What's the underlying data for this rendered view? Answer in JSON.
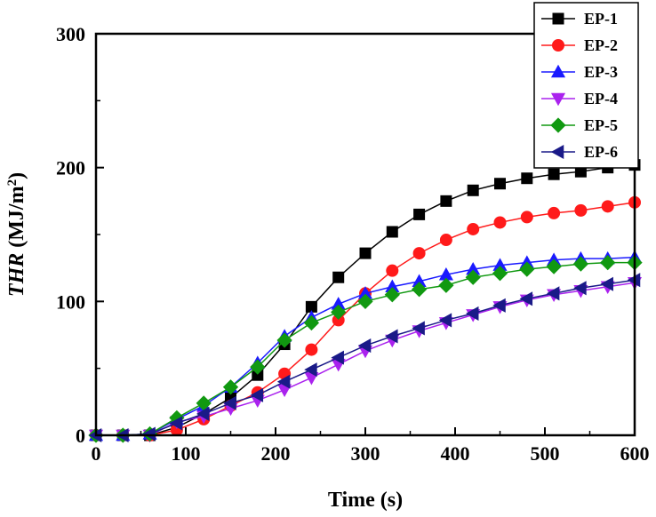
{
  "chart_data": {
    "type": "line",
    "xlabel": "Time (s)",
    "ylabel": {
      "italic": "THR",
      "rest": " (MJ/m",
      "sup": "2",
      "close": ")"
    },
    "xlim": [
      0,
      600
    ],
    "ylim": [
      0,
      300
    ],
    "xticks": [
      0,
      100,
      200,
      300,
      400,
      500,
      600
    ],
    "yticks": [
      0,
      100,
      200,
      300
    ],
    "x": [
      0,
      30,
      60,
      90,
      120,
      150,
      180,
      210,
      240,
      270,
      300,
      330,
      360,
      390,
      420,
      450,
      480,
      510,
      540,
      570,
      600
    ],
    "legend_position": "top-right",
    "series": [
      {
        "name": "EP-1",
        "color": "#000000",
        "marker": "square",
        "values": [
          0,
          0,
          0,
          6,
          16,
          28,
          45,
          68,
          96,
          118,
          136,
          152,
          165,
          175,
          183,
          188,
          192,
          195,
          197,
          200,
          202
        ]
      },
      {
        "name": "EP-2",
        "color": "#ff1a1a",
        "marker": "circle",
        "values": [
          0,
          0,
          0,
          4,
          12,
          22,
          32,
          46,
          64,
          86,
          106,
          123,
          136,
          146,
          154,
          159,
          163,
          166,
          168,
          171,
          174
        ]
      },
      {
        "name": "EP-3",
        "color": "#1a1aff",
        "marker": "triangle-up",
        "values": [
          0,
          0,
          1,
          12,
          22,
          36,
          54,
          74,
          88,
          98,
          106,
          111,
          115,
          120,
          124,
          127,
          129,
          131,
          132,
          132,
          133
        ]
      },
      {
        "name": "EP-4",
        "color": "#aa22ee",
        "marker": "triangle-down",
        "values": [
          0,
          0,
          0,
          10,
          14,
          20,
          26,
          34,
          43,
          53,
          63,
          71,
          78,
          84,
          90,
          96,
          101,
          105,
          108,
          111,
          114
        ]
      },
      {
        "name": "EP-5",
        "color": "#119911",
        "marker": "diamond",
        "values": [
          0,
          0,
          1,
          13,
          24,
          36,
          51,
          71,
          84,
          92,
          100,
          105,
          109,
          112,
          118,
          121,
          124,
          126,
          128,
          129,
          129
        ]
      },
      {
        "name": "EP-6",
        "color": "#1a1a88",
        "marker": "triangle-left",
        "values": [
          0,
          0,
          1,
          9,
          16,
          24,
          30,
          40,
          49,
          58,
          67,
          74,
          80,
          86,
          91,
          97,
          102,
          106,
          110,
          113,
          116
        ]
      }
    ]
  }
}
